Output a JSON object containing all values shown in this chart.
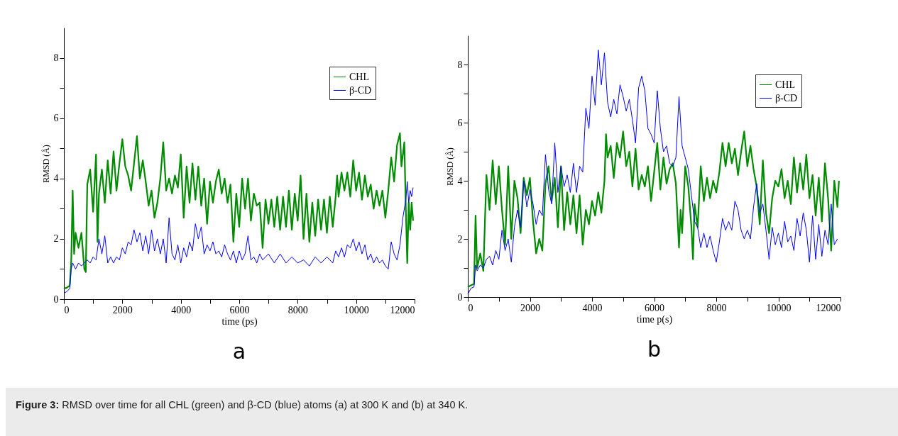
{
  "chart_data": [
    {
      "type": "line",
      "title": "a",
      "xlabel": "time (ps)",
      "ylabel": "RMSD (Å)",
      "xlim": [
        0,
        12000
      ],
      "ylim": [
        0,
        9
      ],
      "xticks": [
        0,
        {
          "value": 1000,
          "label": null
        },
        2000,
        {
          "value": 3000,
          "label": null
        },
        4000,
        {
          "value": 5000,
          "label": null
        },
        6000,
        {
          "value": 7000,
          "label": null
        },
        8000,
        {
          "value": 9000,
          "label": null
        },
        10000,
        {
          "value": 11000,
          "label": null
        },
        12000
      ],
      "yticks": [
        0,
        {
          "value": 1,
          "label": null
        },
        2,
        {
          "value": 3,
          "label": null
        },
        4,
        {
          "value": 5,
          "label": null
        },
        6,
        {
          "value": 7,
          "label": null
        },
        8
      ],
      "grid": false,
      "legend": "top right",
      "marker": "none",
      "line_style": "solid",
      "annotations": [
        "Figure 3: RMSD over time for all CHL (green) and β-CD (blue) atoms (a) at 300 K and (b) at 340 K."
      ],
      "series": [
        {
          "name": "CHL",
          "color": "#008c00",
          "x": [
            0,
            100,
            200,
            250,
            300,
            350,
            400,
            500,
            600,
            700,
            750,
            800,
            900,
            1000,
            1100,
            1150,
            1200,
            1300,
            1400,
            1500,
            1600,
            1700,
            1800,
            1900,
            2000,
            2100,
            2200,
            2300,
            2400,
            2500,
            2600,
            2700,
            2800,
            2900,
            3000,
            3100,
            3200,
            3300,
            3400,
            3500,
            3600,
            3700,
            3800,
            3900,
            4000,
            4100,
            4200,
            4300,
            4400,
            4500,
            4600,
            4700,
            4800,
            4900,
            5000,
            5100,
            5200,
            5300,
            5400,
            5500,
            5600,
            5700,
            5800,
            5900,
            6000,
            6100,
            6200,
            6300,
            6400,
            6500,
            6600,
            6700,
            6800,
            6900,
            7000,
            7100,
            7200,
            7300,
            7400,
            7500,
            7600,
            7700,
            7800,
            7900,
            8000,
            8100,
            8200,
            8300,
            8400,
            8500,
            8600,
            8700,
            8800,
            8900,
            9000,
            9100,
            9200,
            9300,
            9350,
            9400,
            9500,
            9600,
            9700,
            9800,
            9900,
            10000,
            10100,
            10200,
            10300,
            10400,
            10500,
            10600,
            10700,
            10800,
            10900,
            11000,
            11100,
            11200,
            11300,
            11400,
            11500,
            11550,
            11650,
            11700,
            11750,
            11800,
            11850,
            11900,
            11950
          ],
          "values": [
            0.35,
            0.38,
            0.45,
            1.2,
            3.6,
            1.5,
            2.2,
            1.7,
            2.2,
            1.0,
            0.9,
            3.8,
            4.3,
            2.9,
            4.8,
            1.9,
            3.5,
            4.3,
            3.2,
            4.6,
            3.5,
            4.9,
            3.6,
            4.5,
            5.3,
            4.4,
            4.1,
            3.6,
            4.5,
            5.4,
            4.0,
            4.6,
            3.9,
            3.1,
            3.6,
            2.7,
            3.2,
            4.0,
            5.2,
            3.6,
            4.0,
            3.5,
            4.1,
            3.7,
            4.8,
            2.7,
            4.4,
            3.2,
            4.5,
            3.3,
            4.4,
            3.1,
            4.0,
            2.5,
            3.9,
            3.2,
            3.9,
            4.3,
            3.5,
            4.0,
            3.2,
            3.8,
            1.9,
            3.5,
            2.4,
            4.0,
            3.0,
            4.0,
            2.6,
            3.5,
            3.1,
            3.2,
            1.7,
            3.3,
            2.5,
            3.3,
            2.4,
            3.4,
            2.3,
            3.4,
            2.4,
            3.6,
            2.3,
            3.5,
            2.6,
            4.1,
            2.0,
            3.5,
            1.9,
            3.2,
            2.1,
            3.3,
            2.3,
            3.3,
            2.2,
            3.4,
            2.4,
            3.4,
            4.1,
            3.4,
            4.2,
            3.6,
            4.2,
            3.4,
            4.6,
            3.6,
            4.2,
            3.3,
            4.1,
            3.4,
            3.8,
            3.0,
            3.6,
            3.1,
            3.6,
            2.7,
            3.6,
            4.7,
            3.9,
            5.1,
            5.5,
            4.4,
            5.2,
            3.0,
            1.2,
            3.2,
            2.3,
            3.2,
            2.6
          ]
        },
        {
          "name": "β-CD",
          "color": "#0000ff",
          "x": [
            0,
            100,
            200,
            250,
            300,
            400,
            500,
            600,
            700,
            800,
            900,
            1000,
            1100,
            1200,
            1300,
            1400,
            1500,
            1600,
            1700,
            1800,
            1900,
            2000,
            2100,
            2200,
            2300,
            2400,
            2500,
            2600,
            2700,
            2800,
            2900,
            3000,
            3100,
            3200,
            3300,
            3400,
            3500,
            3600,
            3700,
            3800,
            3900,
            4000,
            4100,
            4200,
            4300,
            4400,
            4500,
            4600,
            4700,
            4800,
            4900,
            5000,
            5100,
            5200,
            5300,
            5400,
            5500,
            5600,
            5700,
            5800,
            5900,
            6000,
            6100,
            6200,
            6300,
            6400,
            6500,
            6600,
            6700,
            6800,
            7000,
            7200,
            7400,
            7600,
            7800,
            8000,
            8200,
            8400,
            8600,
            8800,
            9000,
            9200,
            9300,
            9400,
            9500,
            9600,
            9700,
            9800,
            9900,
            10000,
            10100,
            10200,
            10300,
            10400,
            10500,
            10600,
            10700,
            10800,
            10900,
            11000,
            11100,
            11200,
            11300,
            11400,
            11500,
            11600,
            11700,
            11750,
            11800,
            11850,
            11900,
            11950
          ],
          "values": [
            0.2,
            0.25,
            0.35,
            1.0,
            1.2,
            1.0,
            1.2,
            1.1,
            1.2,
            1.3,
            1.2,
            1.4,
            1.3,
            2.0,
            1.5,
            2.1,
            1.2,
            1.4,
            1.2,
            1.4,
            1.3,
            1.7,
            1.5,
            1.9,
            1.8,
            2.3,
            1.9,
            2.2,
            1.6,
            2.1,
            1.5,
            2.3,
            1.6,
            2.0,
            1.5,
            2.0,
            1.2,
            2.7,
            1.5,
            1.3,
            1.8,
            1.2,
            1.7,
            1.4,
            1.9,
            1.6,
            2.5,
            2.0,
            2.4,
            1.5,
            1.8,
            1.6,
            1.9,
            1.5,
            1.6,
            1.4,
            1.8,
            1.5,
            1.3,
            1.6,
            1.2,
            1.6,
            1.3,
            1.5,
            2.1,
            1.3,
            1.4,
            1.2,
            1.5,
            1.3,
            1.5,
            1.2,
            1.5,
            1.2,
            1.4,
            1.2,
            1.3,
            1.1,
            1.4,
            1.2,
            1.4,
            1.2,
            1.6,
            1.4,
            1.7,
            1.4,
            1.8,
            1.7,
            2.0,
            1.6,
            1.9,
            1.5,
            1.8,
            1.3,
            1.5,
            1.2,
            1.4,
            1.2,
            1.3,
            1.1,
            1.0,
            1.9,
            1.5,
            1.3,
            1.8,
            2.7,
            3.3,
            3.9,
            3.2,
            3.6,
            3.4,
            3.7
          ]
        }
      ]
    },
    {
      "type": "line",
      "title": "b",
      "xlabel": "time p(s)",
      "ylabel": "RMSD (Å)",
      "xlim": [
        0,
        12000
      ],
      "ylim": [
        0,
        9
      ],
      "xticks": [
        0,
        {
          "value": 1000,
          "label": null
        },
        2000,
        {
          "value": 3000,
          "label": null
        },
        4000,
        {
          "value": 5000,
          "label": null
        },
        6000,
        {
          "value": 7000,
          "label": null
        },
        8000,
        {
          "value": 9000,
          "label": null
        },
        10000,
        {
          "value": 11000,
          "label": null
        },
        12000
      ],
      "yticks": [
        0,
        {
          "value": 1,
          "label": null
        },
        2,
        {
          "value": 3,
          "label": null
        },
        4,
        {
          "value": 5,
          "label": null
        },
        6,
        {
          "value": 7,
          "label": null
        },
        8
      ],
      "grid": false,
      "legend": "top right",
      "marker": "none",
      "line_style": "solid",
      "series": [
        {
          "name": "CHL",
          "color": "#008c00",
          "x": [
            0,
            100,
            200,
            250,
            300,
            400,
            500,
            600,
            700,
            800,
            900,
            1000,
            1100,
            1200,
            1300,
            1400,
            1500,
            1600,
            1700,
            1800,
            1900,
            2000,
            2100,
            2200,
            2300,
            2400,
            2500,
            2600,
            2700,
            2800,
            2900,
            3000,
            3100,
            3200,
            3300,
            3400,
            3500,
            3600,
            3700,
            3800,
            3900,
            4000,
            4100,
            4200,
            4300,
            4400,
            4450,
            4500,
            4600,
            4700,
            4800,
            4900,
            5000,
            5100,
            5200,
            5300,
            5400,
            5500,
            5600,
            5700,
            5800,
            5900,
            6000,
            6100,
            6200,
            6300,
            6400,
            6500,
            6600,
            6700,
            6800,
            6850,
            6900,
            7000,
            7100,
            7200,
            7250,
            7300,
            7400,
            7500,
            7600,
            7700,
            7800,
            7900,
            8000,
            8100,
            8200,
            8300,
            8400,
            8500,
            8600,
            8700,
            8800,
            8900,
            9000,
            9100,
            9200,
            9300,
            9400,
            9500,
            9600,
            9700,
            9800,
            9900,
            10000,
            10100,
            10200,
            10300,
            10400,
            10500,
            10600,
            10700,
            10800,
            10900,
            11000,
            11100,
            11200,
            11300,
            11400,
            11500,
            11600,
            11700,
            11800,
            11900,
            11950
          ],
          "values": [
            0.35,
            0.4,
            0.45,
            2.8,
            1.0,
            1.5,
            0.9,
            4.2,
            3.0,
            4.7,
            3.2,
            4.5,
            3.0,
            1.8,
            4.5,
            2.0,
            4.0,
            3.4,
            2.2,
            4.1,
            3.5,
            4.1,
            2.6,
            1.5,
            2.0,
            1.6,
            3.9,
            4.5,
            3.3,
            4.1,
            2.4,
            4.5,
            2.3,
            3.6,
            2.5,
            3.5,
            2.2,
            3.5,
            1.8,
            3.0,
            2.5,
            3.3,
            2.8,
            3.6,
            2.9,
            4.0,
            5.6,
            4.8,
            5.2,
            4.1,
            5.3,
            4.8,
            5.7,
            4.5,
            5.0,
            3.8,
            5.1,
            3.7,
            4.2,
            3.8,
            4.5,
            3.3,
            4.3,
            5.3,
            3.7,
            4.8,
            3.9,
            4.4,
            4.6,
            3.9,
            1.7,
            3.0,
            2.2,
            4.5,
            3.8,
            2.4,
            1.3,
            3.2,
            2.4,
            4.5,
            3.3,
            4.1,
            3.4,
            4.0,
            3.6,
            4.3,
            5.3,
            4.5,
            5.3,
            4.6,
            5.1,
            4.2,
            5.0,
            5.7,
            4.5,
            5.2,
            4.4,
            3.8,
            2.5,
            4.7,
            2.9,
            2.2,
            3.4,
            4.0,
            3.8,
            4.4,
            3.4,
            4.0,
            3.2,
            4.8,
            3.6,
            4.6,
            3.7,
            4.9,
            3.4,
            4.2,
            2.8,
            4.1,
            2.6,
            4.6,
            3.4,
            1.6,
            4.0,
            3.1,
            4.0
          ]
        },
        {
          "name": "β-CD",
          "color": "#0000ff",
          "x": [
            0,
            100,
            200,
            250,
            300,
            400,
            500,
            600,
            700,
            800,
            900,
            1000,
            1100,
            1200,
            1300,
            1400,
            1500,
            1600,
            1700,
            1800,
            1900,
            2000,
            2100,
            2200,
            2300,
            2400,
            2500,
            2600,
            2700,
            2800,
            2900,
            3000,
            3100,
            3200,
            3300,
            3400,
            3500,
            3600,
            3700,
            3800,
            3900,
            4000,
            4100,
            4200,
            4300,
            4400,
            4500,
            4600,
            4700,
            4800,
            4900,
            5000,
            5100,
            5200,
            5300,
            5400,
            5500,
            5600,
            5700,
            5800,
            5900,
            6000,
            6100,
            6200,
            6300,
            6400,
            6500,
            6600,
            6700,
            6800,
            6900,
            7000,
            7100,
            7200,
            7300,
            7400,
            7500,
            7600,
            7700,
            7800,
            7900,
            8000,
            8100,
            8200,
            8300,
            8400,
            8500,
            8600,
            8700,
            8800,
            8900,
            9000,
            9100,
            9200,
            9300,
            9400,
            9500,
            9600,
            9700,
            9800,
            9900,
            10000,
            10100,
            10200,
            10300,
            10400,
            10500,
            10600,
            10700,
            10800,
            10900,
            11000,
            11100,
            11200,
            11300,
            11400,
            11500,
            11600,
            11700,
            11800,
            11900
          ],
          "values": [
            0.1,
            0.3,
            0.35,
            1.1,
            0.9,
            1.1,
            1.0,
            1.3,
            1.4,
            1.1,
            1.6,
            1.3,
            2.3,
            1.6,
            2.0,
            1.2,
            2.4,
            3.0,
            2.4,
            4.0,
            3.1,
            3.7,
            3.2,
            2.5,
            3.0,
            2.8,
            4.9,
            3.7,
            3.2,
            5.3,
            3.6,
            4.5,
            3.8,
            4.2,
            3.6,
            4.6,
            3.6,
            4.5,
            4.3,
            6.5,
            5.8,
            7.6,
            6.6,
            8.5,
            7.3,
            8.4,
            6.7,
            6.2,
            6.8,
            6.3,
            7.3,
            6.9,
            6.4,
            6.8,
            6.1,
            5.3,
            7.2,
            7.6,
            7.1,
            5.8,
            5.6,
            5.3,
            7.1,
            5.8,
            5.0,
            5.2,
            4.6,
            4.5,
            4.8,
            6.9,
            5.2,
            4.8,
            4.4,
            3.5,
            2.6,
            2.4,
            1.7,
            2.2,
            1.7,
            2.1,
            1.6,
            1.2,
            1.9,
            2.7,
            2.3,
            2.6,
            2.3,
            3.3,
            3.0,
            2.3,
            2.0,
            2.3,
            2.0,
            3.1,
            3.9,
            2.9,
            3.2,
            2.3,
            1.3,
            2.4,
            1.8,
            2.2,
            1.7,
            2.6,
            1.9,
            2.1,
            1.6,
            2.7,
            2.1,
            2.9,
            2.3,
            1.2,
            2.8,
            1.3,
            2.5,
            1.4,
            2.3,
            1.8,
            3.2,
            1.8,
            2.0
          ]
        }
      ]
    }
  ]
}
